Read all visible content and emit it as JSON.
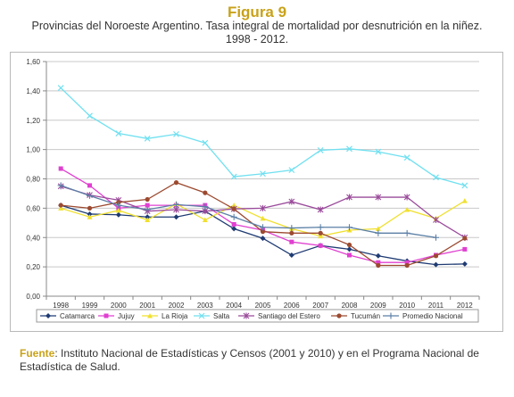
{
  "figure_title": "Figura 9",
  "subtitle": "Provincias del Noroeste Argentino. Tasa integral de mortalidad por desnutrición en la niñez. 1998 - 2012.",
  "source_label": "Fuente",
  "source_text": ": Instituto Nacional de Estadísticas y Censos (2001 y 2010) y en el Programa Nacional de Estadística de Salud.",
  "chart_data": {
    "type": "line",
    "x": [
      "1998",
      "1999",
      "2000",
      "2001",
      "2002",
      "2003",
      "2004",
      "2005",
      "2006",
      "2007",
      "2008",
      "2009",
      "2010",
      "2011",
      "2012"
    ],
    "ylim": [
      0,
      1.6
    ],
    "y_ticks": [
      "0,00",
      "0,20",
      "0,40",
      "0,60",
      "0,80",
      "1,00",
      "1,20",
      "1,40",
      "1,60"
    ],
    "grid": true,
    "legend_position": "bottom",
    "series": [
      {
        "name": "Catamarca",
        "color": "#1f3b73",
        "marker": "diamond",
        "values": [
          0.62,
          0.56,
          0.555,
          0.54,
          0.54,
          0.58,
          0.46,
          0.395,
          0.28,
          0.345,
          0.32,
          0.275,
          0.24,
          0.215,
          0.22
        ]
      },
      {
        "name": "Jujuy",
        "color": "#e040d0",
        "marker": "square",
        "values": [
          0.87,
          0.755,
          0.6,
          0.62,
          0.62,
          0.62,
          0.49,
          0.45,
          0.37,
          0.345,
          0.28,
          0.23,
          0.23,
          0.28,
          0.32
        ]
      },
      {
        "name": "La Rioja",
        "color": "#f0e030",
        "marker": "triangle",
        "values": [
          0.6,
          0.54,
          0.585,
          0.52,
          0.63,
          0.52,
          0.62,
          0.53,
          0.46,
          0.41,
          0.45,
          0.46,
          0.59,
          0.53,
          0.65
        ]
      },
      {
        "name": "Salta",
        "color": "#70e0f0",
        "marker": "x",
        "values": [
          1.42,
          1.23,
          1.11,
          1.075,
          1.105,
          1.045,
          0.815,
          0.835,
          0.86,
          0.995,
          1.005,
          0.985,
          0.945,
          0.81,
          0.755
        ]
      },
      {
        "name": "Santiago del Estero",
        "color": "#9a4a9a",
        "marker": "star",
        "values": [
          0.75,
          0.69,
          0.655,
          0.58,
          0.59,
          0.58,
          0.595,
          0.6,
          0.645,
          0.59,
          0.675,
          0.675,
          0.675,
          0.52,
          0.4
        ]
      },
      {
        "name": "Tucumán",
        "color": "#9c4a30",
        "marker": "circle",
        "values": [
          0.62,
          0.6,
          0.64,
          0.66,
          0.775,
          0.705,
          0.595,
          0.44,
          0.43,
          0.43,
          0.35,
          0.21,
          0.21,
          0.275,
          0.395
        ]
      },
      {
        "name": "Promedio Nacional",
        "color": "#5b7fa6",
        "marker": "plus",
        "values": [
          0.755,
          0.685,
          0.62,
          0.59,
          0.625,
          0.61,
          0.54,
          0.47,
          0.465,
          0.47,
          0.47,
          0.43,
          0.43,
          0.4,
          null
        ]
      }
    ]
  }
}
